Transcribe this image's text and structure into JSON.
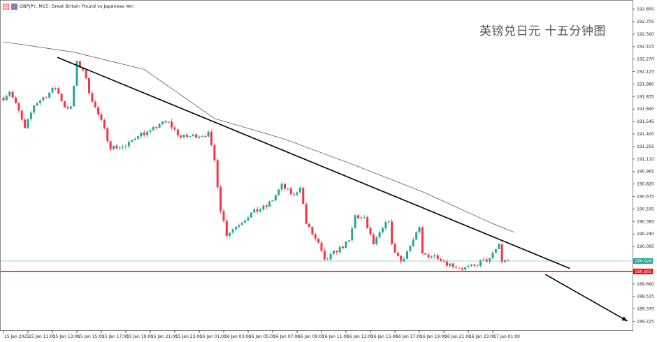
{
  "header": {
    "symbol_title": "GBPJPY, M15:  Great Britain Pound vs Japanese Yen",
    "icons": [
      "grid-icon",
      "chart-icon"
    ]
  },
  "caption": "英镑兑日元 十五分钟图",
  "colors": {
    "bull": "#26a69a",
    "bear": "#f23645",
    "ma": "#444444",
    "trendline": "#000000",
    "support": "#ff0000",
    "current_price_line": "#7fc6bd"
  },
  "chart_data": {
    "type": "candlestick",
    "timeframe": "M15",
    "ylim": [
      189.15,
      192.95
    ],
    "y_ticks": [
      "192.850",
      "192.705",
      "192.560",
      "192.415",
      "192.270",
      "192.125",
      "191.980",
      "191.835",
      "191.690",
      "191.545",
      "191.400",
      "191.255",
      "191.110",
      "190.965",
      "190.820",
      "190.675",
      "190.530",
      "190.385",
      "190.240",
      "190.095",
      "189.660",
      "189.515",
      "189.370",
      "189.225"
    ],
    "x_ticks": [
      "15 Jan 2025",
      "15 Jan 11:00",
      "15 Jan 13:00",
      "15 Jan 15:00",
      "15 Jan 17:00",
      "15 Jan 19:00",
      "15 Jan 21:00",
      "15 Jan 23:00",
      "16 Jan 01:00",
      "16 Jan 03:00",
      "16 Jan 05:00",
      "16 Jan 07:00",
      "16 Jan 09:00",
      "16 Jan 11:00",
      "16 Jan 13:00",
      "16 Jan 15:00",
      "16 Jan 17:00",
      "16 Jan 19:00",
      "16 Jan 21:00",
      "16 Jan 23:00",
      "17 Jan 01:00"
    ],
    "price_path": [
      [
        "15 Jan 09:00",
        191.82
      ],
      [
        "15 Jan 09:30",
        191.9
      ],
      [
        "15 Jan 10:15",
        191.66
      ],
      [
        "15 Jan 10:45",
        191.45
      ],
      [
        "15 Jan 11:30",
        191.74
      ],
      [
        "15 Jan 12:30",
        191.85
      ],
      [
        "15 Jan 13:15",
        191.94
      ],
      [
        "15 Jan 14:00",
        191.72
      ],
      [
        "15 Jan 14:30",
        191.7
      ],
      [
        "15 Jan 15:00",
        192.22
      ],
      [
        "15 Jan 15:30",
        192.15
      ],
      [
        "15 Jan 16:00",
        191.9
      ],
      [
        "15 Jan 16:30",
        191.7
      ],
      [
        "15 Jan 17:00",
        191.54
      ],
      [
        "15 Jan 17:45",
        191.25
      ],
      [
        "15 Jan 19:00",
        191.25
      ],
      [
        "15 Jan 20:00",
        191.4
      ],
      [
        "15 Jan 21:00",
        191.42
      ],
      [
        "15 Jan 21:45",
        191.52
      ],
      [
        "15 Jan 22:30",
        191.53
      ],
      [
        "15 Jan 23:30",
        191.36
      ],
      [
        "16 Jan 00:30",
        191.38
      ],
      [
        "16 Jan 01:45",
        191.4
      ],
      [
        "16 Jan 02:15",
        191.09
      ],
      [
        "16 Jan 02:45",
        190.53
      ],
      [
        "16 Jan 03:15",
        190.24
      ],
      [
        "16 Jan 04:15",
        190.36
      ],
      [
        "16 Jan 05:15",
        190.48
      ],
      [
        "16 Jan 06:30",
        190.56
      ],
      [
        "16 Jan 07:00",
        190.64
      ],
      [
        "16 Jan 07:45",
        190.8
      ],
      [
        "16 Jan 08:45",
        190.68
      ],
      [
        "16 Jan 09:15",
        190.8
      ],
      [
        "16 Jan 09:45",
        190.36
      ],
      [
        "16 Jan 10:45",
        190.12
      ],
      [
        "16 Jan 11:15",
        189.92
      ],
      [
        "16 Jan 12:15",
        190.05
      ],
      [
        "16 Jan 13:15",
        190.15
      ],
      [
        "16 Jan 13:45",
        190.45
      ],
      [
        "16 Jan 14:30",
        190.41
      ],
      [
        "16 Jan 15:15",
        190.12
      ],
      [
        "16 Jan 16:30",
        190.41
      ],
      [
        "16 Jan 16:45",
        190.1
      ],
      [
        "16 Jan 17:30",
        189.92
      ],
      [
        "16 Jan 18:15",
        190.1
      ],
      [
        "16 Jan 19:00",
        190.3
      ],
      [
        "16 Jan 19:15",
        190.0
      ],
      [
        "16 Jan 20:30",
        189.98
      ],
      [
        "16 Jan 21:15",
        189.9
      ],
      [
        "16 Jan 22:30",
        189.84
      ],
      [
        "16 Jan 23:30",
        189.86
      ],
      [
        "17 Jan 00:00",
        189.92
      ],
      [
        "17 Jan 00:45",
        189.94
      ],
      [
        "17 Jan 01:30",
        190.12
      ],
      [
        "17 Jan 01:45",
        189.92
      ],
      [
        "17 Jan 02:15",
        189.926
      ]
    ],
    "moving_average": [
      [
        "15 Jan 09:00",
        192.47
      ],
      [
        "15 Jan 14:45",
        192.35
      ],
      [
        "15 Jan 20:30",
        192.15
      ],
      [
        "16 Jan 02:15",
        191.58
      ],
      [
        "16 Jan 08:00",
        191.34
      ],
      [
        "16 Jan 13:30",
        191.05
      ],
      [
        "16 Jan 19:15",
        190.73
      ],
      [
        "17 Jan 01:00",
        190.36
      ],
      [
        "17 Jan 02:45",
        190.26
      ]
    ],
    "trendlines": [
      {
        "from": [
          "15 Jan 13:24",
          192.29
        ],
        "to": [
          "17 Jan 07:18",
          189.84
        ],
        "arrow": false
      },
      {
        "from": [
          "17 Jan 05:18",
          189.77
        ],
        "to": [
          "17 Jan 12:00",
          189.23
        ],
        "arrow": true
      }
    ],
    "support_level": {
      "price": 189.805,
      "label": "189.805"
    },
    "current_price": {
      "price": 189.926,
      "label": "189.926"
    }
  }
}
